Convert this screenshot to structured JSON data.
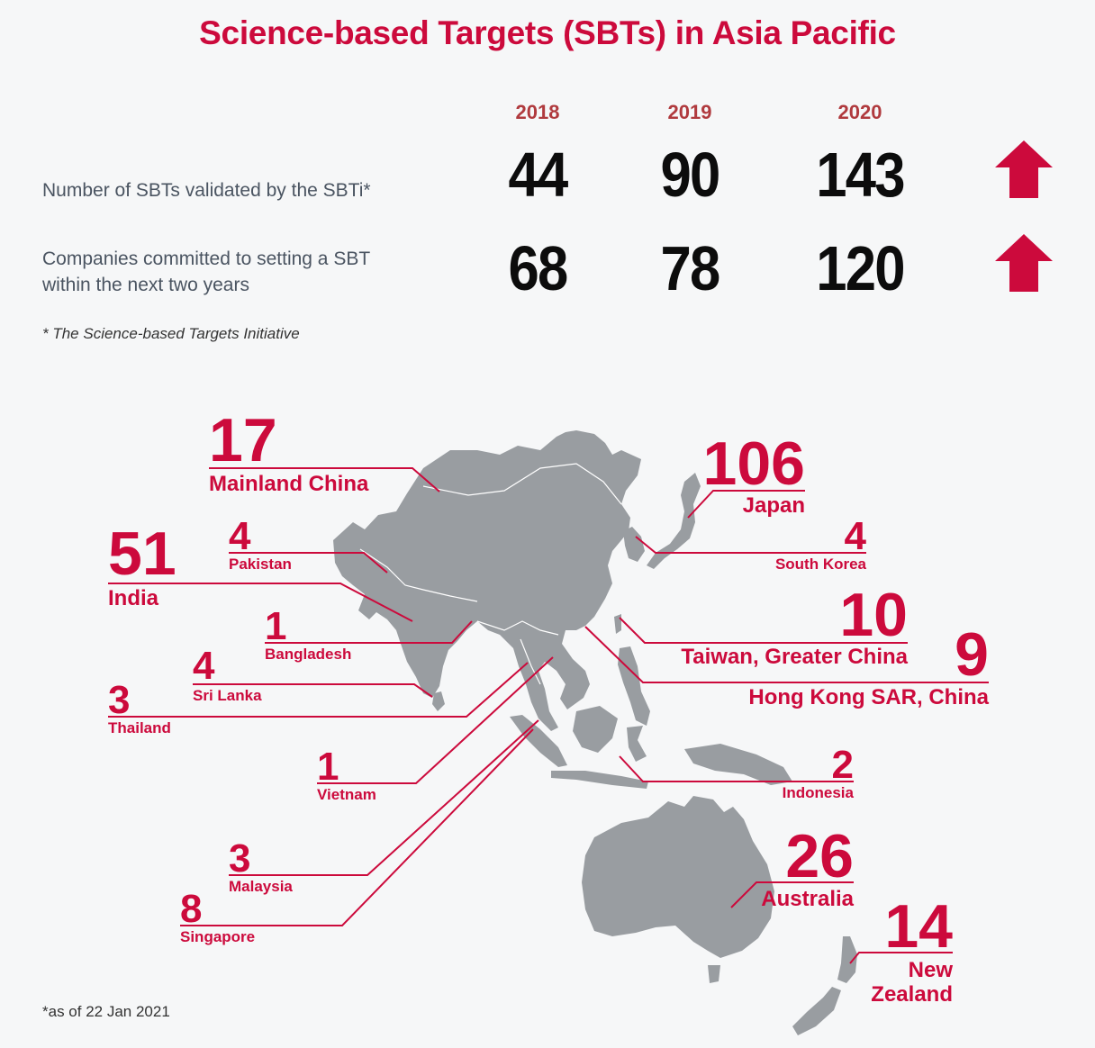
{
  "title": "Science-based Targets (SBTs) in Asia Pacific",
  "years": [
    "2018",
    "2019",
    "2020"
  ],
  "rows": [
    {
      "label_line1": "Number of SBTs validated by the SBTi*",
      "label_line2": "",
      "values": [
        "44",
        "90",
        "143"
      ],
      "trend": "up"
    },
    {
      "label_line1": "Companies committed to setting a SBT",
      "label_line2": "within the next two years",
      "values": [
        "68",
        "78",
        "120"
      ],
      "trend": "up"
    }
  ],
  "footnote": "* The Science-based Targets Initiative",
  "as_of": "*as of 22 Jan 2021",
  "countries": {
    "mainland_china": {
      "value": "17",
      "name": "Mainland China"
    },
    "japan": {
      "value": "106",
      "name": "Japan"
    },
    "india": {
      "value": "51",
      "name": "India"
    },
    "pakistan": {
      "value": "4",
      "name": "Pakistan"
    },
    "south_korea": {
      "value": "4",
      "name": "South Korea"
    },
    "bangladesh": {
      "value": "1",
      "name": "Bangladesh"
    },
    "taiwan": {
      "value": "10",
      "name": "Taiwan, Greater China"
    },
    "sri_lanka": {
      "value": "4",
      "name": "Sri Lanka"
    },
    "hong_kong": {
      "value": "9",
      "name": "Hong Kong SAR, China"
    },
    "thailand": {
      "value": "3",
      "name": "Thailand"
    },
    "vietnam": {
      "value": "1",
      "name": "Vietnam"
    },
    "indonesia": {
      "value": "2",
      "name": "Indonesia"
    },
    "malaysia": {
      "value": "3",
      "name": "Malaysia"
    },
    "australia": {
      "value": "26",
      "name": "Australia"
    },
    "singapore": {
      "value": "8",
      "name": "Singapore"
    },
    "new_zealand": {
      "value": "14",
      "name_line1": "New",
      "name_line2": "Zealand"
    }
  },
  "colors": {
    "accent": "#cc0a3c",
    "map": "#999da1",
    "year": "#b03a3e",
    "number": "#0c0c0c"
  }
}
